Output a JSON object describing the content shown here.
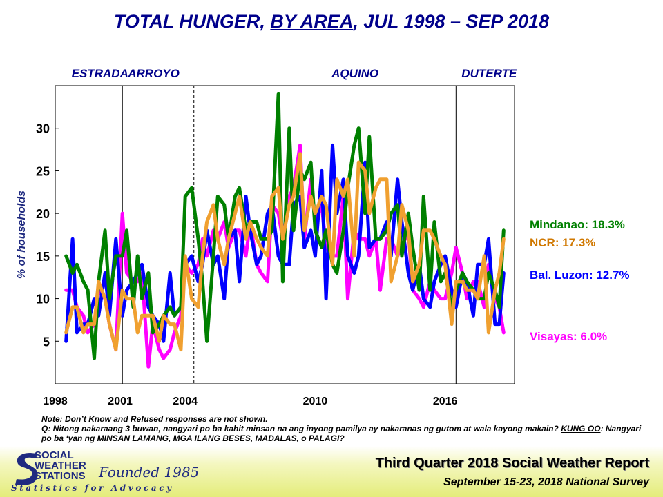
{
  "title": {
    "part1": "TOTAL HUNGER, ",
    "part2": "BY AREA",
    "part3": ", JUL 1998 – SEP 2018"
  },
  "note": {
    "line1": "Note: Don’t Know and Refused responses are not shown.",
    "line2": "Q: Nitong nakaraang 3 buwan, nangyari po ba kahit minsan na ang inyong pamilya ay nakaranas ng gutom at wala kayong makain?",
    "kung": "KUNG OO",
    "line3": ": Nangyari po ba ‘yan ng MINSAN LAMANG, MGA ILANG BESES, MADALAS, o PALAGI?"
  },
  "footer": {
    "org_line1": "SOCIAL",
    "org_line2": "WEATHER",
    "org_line3": "STATIONS",
    "founded": "Founded 1985",
    "tagline": "Statistics for Advocacy",
    "report": "Third Quarter 2018 Social Weather Report",
    "survey": "September 15-23, 2018 National Survey"
  },
  "chart_data": {
    "type": "line",
    "title": "TOTAL HUNGER, BY AREA, JUL 1998 – SEP 2018",
    "ylabel": "% of households",
    "xlabel": "",
    "ylim": [
      0,
      35
    ],
    "xlim": [
      1998,
      2019.2
    ],
    "yticks": [
      5,
      10,
      15,
      20,
      25,
      30
    ],
    "xtick_labels": [
      "1998",
      "2001",
      "2004",
      "2010",
      "2016"
    ],
    "xtick_values": [
      1998,
      2001,
      2004,
      2010,
      2016
    ],
    "administrations": [
      {
        "name": "ESTRADA",
        "start": 1998.5
      },
      {
        "name": "ARROYO",
        "start": 2001.1
      },
      {
        "name": "AQUINO",
        "start": 2010.5
      },
      {
        "name": "DUTERTE",
        "start": 2016.5
      }
    ],
    "admin_dividers": [
      2001.1,
      2004.4,
      2016.5
    ],
    "dashed_divider": 2004.4,
    "series": [
      {
        "name": "Visayas",
        "end_label": "Visayas: 6.0%",
        "color": "#ff00ff",
        "x": [
          1998.5,
          1998.8,
          1999.0,
          1999.3,
          1999.5,
          1999.8,
          2000.0,
          2000.3,
          2000.5,
          2000.8,
          2001.1,
          2001.3,
          2001.6,
          2001.8,
          2002.0,
          2002.3,
          2002.5,
          2002.8,
          2003.0,
          2003.3,
          2003.5,
          2003.8,
          2004.0,
          2004.3,
          2004.6,
          2004.8,
          2005.0,
          2005.3,
          2005.5,
          2005.8,
          2006.0,
          2006.3,
          2006.5,
          2006.8,
          2007.0,
          2007.3,
          2007.5,
          2007.8,
          2008.0,
          2008.3,
          2008.5,
          2008.8,
          2009.0,
          2009.3,
          2009.5,
          2009.8,
          2010.0,
          2010.3,
          2010.5,
          2010.8,
          2011.0,
          2011.3,
          2011.5,
          2011.8,
          2012.0,
          2012.3,
          2012.5,
          2012.8,
          2013.0,
          2013.3,
          2013.5,
          2013.8,
          2014.0,
          2014.3,
          2014.5,
          2014.8,
          2015.0,
          2015.3,
          2015.5,
          2015.8,
          2016.0,
          2016.3,
          2016.5,
          2016.8,
          2017.0,
          2017.3,
          2017.5,
          2017.8,
          2018.0,
          2018.3,
          2018.5,
          2018.7
        ],
        "values": [
          11,
          11,
          9,
          8,
          6,
          7,
          11,
          10,
          7,
          4,
          20,
          13,
          12,
          12,
          13,
          2,
          7,
          4,
          3,
          4,
          6,
          8,
          14,
          13,
          14,
          17,
          15,
          18,
          17,
          19,
          16,
          18,
          18,
          15,
          19,
          14,
          13,
          12,
          21,
          20,
          17,
          22,
          23,
          28,
          17,
          24,
          19,
          21,
          16,
          15,
          15,
          22,
          10,
          18,
          17,
          17,
          15,
          17,
          11,
          17,
          17,
          15,
          16,
          18,
          11,
          10,
          9,
          12,
          11,
          10,
          10,
          13,
          16,
          13,
          10,
          12,
          12,
          9,
          14,
          10,
          9,
          6
        ]
      },
      {
        "name": "Bal. Luzon",
        "end_label": "Bal. Luzon: 12.7%",
        "color": "#0000ff",
        "x": [
          1998.5,
          1998.8,
          1999.0,
          1999.3,
          1999.5,
          1999.8,
          2000.0,
          2000.3,
          2000.5,
          2000.8,
          2001.1,
          2001.3,
          2001.6,
          2001.8,
          2002.0,
          2002.3,
          2002.5,
          2002.8,
          2003.0,
          2003.3,
          2003.5,
          2003.8,
          2004.0,
          2004.3,
          2004.6,
          2004.8,
          2005.0,
          2005.3,
          2005.5,
          2005.8,
          2006.0,
          2006.3,
          2006.5,
          2006.8,
          2007.0,
          2007.3,
          2007.5,
          2007.8,
          2008.0,
          2008.3,
          2008.5,
          2008.8,
          2009.0,
          2009.3,
          2009.5,
          2009.8,
          2010.0,
          2010.3,
          2010.5,
          2010.8,
          2011.0,
          2011.3,
          2011.5,
          2011.8,
          2012.0,
          2012.3,
          2012.5,
          2012.8,
          2013.0,
          2013.3,
          2013.5,
          2013.8,
          2014.0,
          2014.3,
          2014.5,
          2014.8,
          2015.0,
          2015.3,
          2015.5,
          2015.8,
          2016.0,
          2016.3,
          2016.5,
          2016.8,
          2017.0,
          2017.3,
          2017.5,
          2017.8,
          2018.0,
          2018.3,
          2018.5,
          2018.7
        ],
        "values": [
          5,
          17,
          6,
          7,
          7,
          10,
          8,
          13,
          8,
          17,
          8,
          11,
          12,
          13,
          14,
          9,
          8,
          7,
          5,
          13,
          8,
          9,
          14,
          15,
          12,
          14,
          18,
          14,
          15,
          10,
          17,
          18,
          12,
          22,
          18,
          14,
          15,
          20,
          21,
          15,
          14,
          14,
          21,
          22,
          16,
          18,
          15,
          25,
          10,
          28,
          20,
          24,
          15,
          13,
          15,
          26,
          16,
          17,
          17,
          19,
          15,
          24,
          19,
          13,
          11,
          14,
          10,
          9,
          12,
          14,
          15,
          11,
          9,
          13,
          12,
          8,
          14,
          14,
          17,
          7,
          7,
          13
        ]
      },
      {
        "name": "Mindanao",
        "end_label": "Mindanao: 18.3%",
        "color": "#008000",
        "x": [
          1998.5,
          1998.8,
          1999.0,
          1999.3,
          1999.5,
          1999.8,
          2000.0,
          2000.3,
          2000.5,
          2000.8,
          2001.1,
          2001.3,
          2001.6,
          2001.8,
          2002.0,
          2002.3,
          2002.5,
          2002.8,
          2003.0,
          2003.3,
          2003.5,
          2003.8,
          2004.0,
          2004.3,
          2004.6,
          2004.8,
          2005.0,
          2005.3,
          2005.5,
          2005.8,
          2006.0,
          2006.3,
          2006.5,
          2006.8,
          2007.0,
          2007.3,
          2007.5,
          2007.8,
          2008.0,
          2008.3,
          2008.5,
          2008.8,
          2009.0,
          2009.3,
          2009.5,
          2009.8,
          2010.0,
          2010.3,
          2010.5,
          2010.8,
          2011.0,
          2011.3,
          2011.5,
          2011.8,
          2012.0,
          2012.3,
          2012.5,
          2012.8,
          2013.0,
          2013.3,
          2013.5,
          2013.8,
          2014.0,
          2014.3,
          2014.5,
          2014.8,
          2015.0,
          2015.3,
          2015.5,
          2015.8,
          2016.0,
          2016.3,
          2016.5,
          2016.8,
          2017.0,
          2017.3,
          2017.5,
          2017.8,
          2018.0,
          2018.3,
          2018.5,
          2018.7
        ],
        "values": [
          15,
          13,
          14,
          12,
          11,
          3,
          12,
          18,
          10,
          15,
          15,
          18,
          9,
          15,
          10,
          13,
          6,
          7,
          8,
          9,
          8,
          9,
          22,
          23,
          17,
          12,
          5,
          15,
          22,
          21,
          17,
          22,
          23,
          18,
          19,
          19,
          17,
          17,
          18,
          34,
          12,
          30,
          18,
          25,
          24,
          26,
          18,
          16,
          18,
          14,
          13,
          18,
          23,
          28,
          30,
          20,
          29,
          17,
          17,
          18,
          20,
          21,
          15,
          20,
          16,
          11,
          22,
          11,
          19,
          12,
          13,
          9,
          11,
          13,
          12,
          11,
          10,
          10,
          13,
          11,
          9,
          18
        ]
      },
      {
        "name": "NCR",
        "end_label": "NCR: 17.3%",
        "color": "#f0a030",
        "label_color": "#d07800",
        "x": [
          1998.5,
          1998.8,
          1999.0,
          1999.3,
          1999.5,
          1999.8,
          2000.0,
          2000.3,
          2000.5,
          2000.8,
          2001.1,
          2001.3,
          2001.6,
          2001.8,
          2002.0,
          2002.3,
          2002.5,
          2002.8,
          2003.0,
          2003.3,
          2003.5,
          2003.8,
          2004.0,
          2004.3,
          2004.6,
          2004.8,
          2005.0,
          2005.3,
          2005.5,
          2005.8,
          2006.0,
          2006.3,
          2006.5,
          2006.8,
          2007.0,
          2007.3,
          2007.5,
          2007.8,
          2008.0,
          2008.3,
          2008.5,
          2008.8,
          2009.0,
          2009.3,
          2009.5,
          2009.8,
          2010.0,
          2010.3,
          2010.5,
          2010.8,
          2011.0,
          2011.3,
          2011.5,
          2011.8,
          2012.0,
          2012.3,
          2012.5,
          2012.8,
          2013.0,
          2013.3,
          2013.5,
          2013.8,
          2014.0,
          2014.3,
          2014.5,
          2014.8,
          2015.0,
          2015.3,
          2015.5,
          2015.8,
          2016.0,
          2016.3,
          2016.5,
          2016.8,
          2017.0,
          2017.3,
          2017.5,
          2017.8,
          2018.0,
          2018.3,
          2018.5,
          2018.7
        ],
        "values": [
          6,
          9,
          9,
          6,
          7,
          7,
          12,
          10,
          7,
          4,
          11,
          10,
          10,
          6,
          8,
          8,
          8,
          5,
          8,
          7,
          7,
          4,
          15,
          10,
          9,
          15,
          19,
          21,
          17,
          14,
          17,
          20,
          22,
          17,
          19,
          17,
          16,
          15,
          22,
          23,
          17,
          21,
          22,
          27,
          18,
          22,
          20,
          22,
          21,
          14,
          24,
          22,
          24,
          15,
          26,
          25,
          20,
          23,
          24,
          24,
          12,
          15,
          21,
          18,
          12,
          14,
          18,
          18,
          17,
          15,
          14,
          7,
          12,
          12,
          11,
          11,
          10,
          15,
          6,
          11,
          13,
          17
        ]
      }
    ]
  }
}
